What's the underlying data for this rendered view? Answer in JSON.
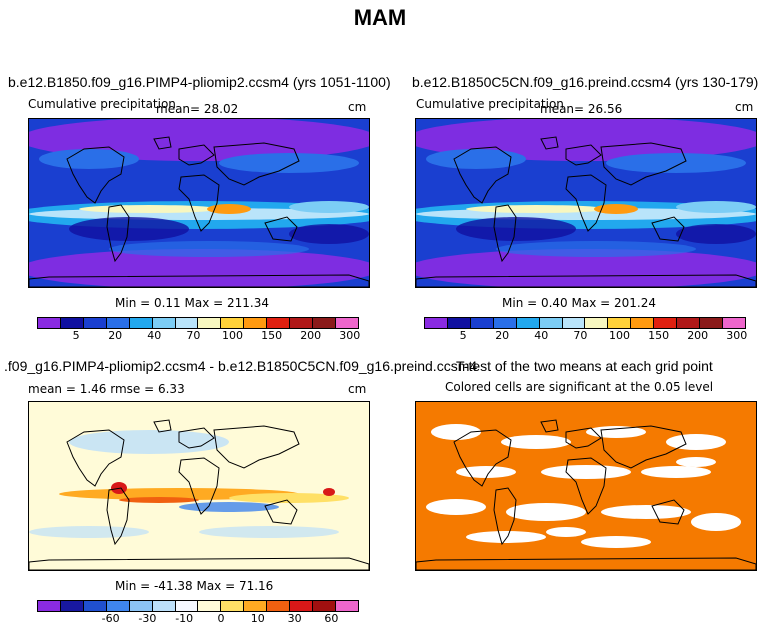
{
  "figure": {
    "title": "MAM"
  },
  "panels": [
    {
      "id": "p1",
      "title": "b.e12.B1850.f09_g16.PIMP4-pliomip2.ccsm4 (yrs 1051-1100)",
      "left_label": "Cumulative precipitation",
      "mean_label": "mean=   28.02",
      "units": "cm",
      "minmax": "Min =    0.11 Max = 211.34",
      "colorbar_labels": [
        "5",
        "20",
        "40",
        "70",
        "100",
        "150",
        "200",
        "300"
      ]
    },
    {
      "id": "p2",
      "title": "b.e12.B1850C5CN.f09_g16.preind.ccsm4 (yrs 130-179)",
      "left_label": "Cumulative precipitation",
      "mean_label": "mean=   26.56",
      "units": "cm",
      "minmax": "Min =    0.40 Max = 201.24",
      "colorbar_labels": [
        "5",
        "20",
        "40",
        "70",
        "100",
        "150",
        "200",
        "300"
      ]
    },
    {
      "id": "p3",
      "title": ".f09_g16.PIMP4-pliomip2.ccsm4 - b.e12.B1850C5CN.f09_g16.preind.ccsm4",
      "stats": "mean =    1.46      rmse =    6.33",
      "units": "cm",
      "minmax": "Min = -41.38 Max =  71.16",
      "colorbar_labels": [
        "-60",
        "-30",
        "-10",
        "0",
        "10",
        "30",
        "60"
      ]
    },
    {
      "id": "p4",
      "title": "T-test of the two means at each grid point",
      "subtitle": "Colored cells are significant at the 0.05 level"
    }
  ],
  "colors": {
    "precip_scale": [
      "#8a2be2",
      "#1010a0",
      "#1a3fd0",
      "#2a6fe8",
      "#22a8ee",
      "#7ccdf5",
      "#b9e4fa",
      "#f7f7c0",
      "#ffd23a",
      "#ff9a10",
      "#e02010",
      "#b01818",
      "#8b1a1a",
      "#ee66cc"
    ],
    "diff_scale": [
      "#8a2be2",
      "#1818a0",
      "#2050d0",
      "#3f85ee",
      "#8cc4f5",
      "#bde0fa",
      "#f5f8ff",
      "#fffbd8",
      "#ffe066",
      "#ffaa22",
      "#f06010",
      "#d81818",
      "#a01010",
      "#ee66cc"
    ],
    "ttest": "#f57a00",
    "coast": "#000000"
  }
}
